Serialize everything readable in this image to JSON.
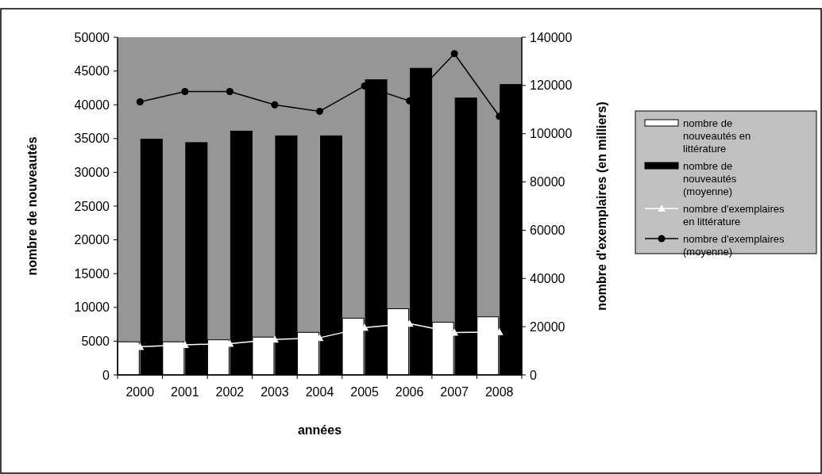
{
  "chart_data": {
    "type": "bar",
    "xlabel": "années",
    "ylabel": "nombre de nouveautés",
    "y2label": "nombre d'exemplaires (en milliers)",
    "categories": [
      "2000",
      "2001",
      "2002",
      "2003",
      "2004",
      "2005",
      "2006",
      "2007",
      "2008"
    ],
    "series": [
      {
        "name": "nombre de nouveautés en littérature",
        "color": "#ffffff",
        "values": [
          4900,
          4900,
          5200,
          5600,
          6300,
          8400,
          9800,
          7800,
          8600
        ]
      },
      {
        "name": "nombre de nouveautés (moyenne)",
        "color": "#000000",
        "values": [
          34900,
          34400,
          36100,
          35400,
          35400,
          43700,
          45400,
          41000,
          43000
        ]
      },
      {
        "name": "nombre d'exemplaires en littérature",
        "type": "line",
        "axis": "y2",
        "color": "#ffffff",
        "marker": "triangle",
        "values": [
          11700,
          12500,
          13000,
          14700,
          15400,
          19600,
          21300,
          17600,
          17800
        ]
      },
      {
        "name": "nombre d'exemplaires (moyenne)",
        "type": "line",
        "axis": "y2",
        "color": "#000000",
        "marker": "circle",
        "values": [
          113200,
          117500,
          117500,
          112000,
          109300,
          119800,
          113600,
          133200,
          107200
        ]
      }
    ],
    "ylim": [
      0,
      50000
    ],
    "yticks": [
      0,
      5000,
      10000,
      15000,
      20000,
      25000,
      30000,
      35000,
      40000,
      45000,
      50000
    ],
    "y2lim": [
      0,
      140000
    ],
    "y2ticks": [
      0,
      20000,
      40000,
      60000,
      80000,
      100000,
      120000,
      140000
    ],
    "legend": "right",
    "grid": false
  }
}
